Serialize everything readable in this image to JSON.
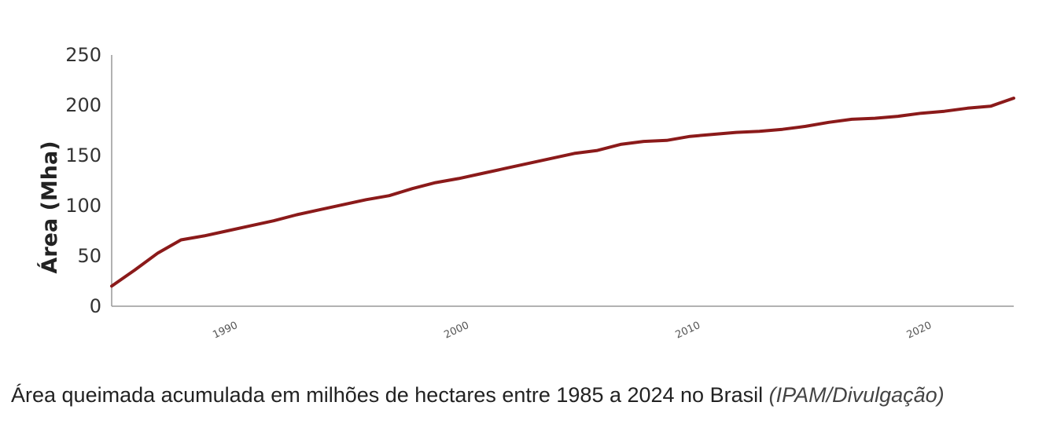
{
  "caption": {
    "text": "Área queimada acumulada em milhões de hectares entre 1985 a 2024 no Brasil",
    "credit": "(IPAM/Divulgação)"
  },
  "colors": {
    "line": "#8b1a1a",
    "axis": "#999999"
  },
  "chart_data": {
    "type": "line",
    "title": "",
    "xlabel": "",
    "ylabel": "Área (Mha)",
    "xlim": [
      1985,
      2024
    ],
    "ylim": [
      0,
      250
    ],
    "y_ticks": [
      0,
      50,
      100,
      150,
      200,
      250
    ],
    "x_ticks": [
      1990,
      2000,
      2010,
      2020
    ],
    "grid": false,
    "legend": "none",
    "series": [
      {
        "x": [
          1985,
          1986,
          1987,
          1988,
          1989,
          1990,
          1991,
          1992,
          1993,
          1994,
          1995,
          1996,
          1997,
          1998,
          1999,
          2000,
          2001,
          2002,
          2003,
          2004,
          2005,
          2006,
          2007,
          2008,
          2009,
          2010,
          2011,
          2012,
          2013,
          2014,
          2015,
          2016,
          2017,
          2018,
          2019,
          2020,
          2021,
          2022,
          2023,
          2024
        ],
        "y": [
          20,
          36,
          53,
          66,
          70,
          75,
          80,
          85,
          91,
          96,
          101,
          106,
          110,
          117,
          123,
          127,
          132,
          137,
          142,
          147,
          152,
          155,
          161,
          164,
          165,
          169,
          171,
          173,
          174,
          176,
          179,
          183,
          186,
          187,
          189,
          192,
          194,
          197,
          199,
          207
        ]
      }
    ]
  }
}
